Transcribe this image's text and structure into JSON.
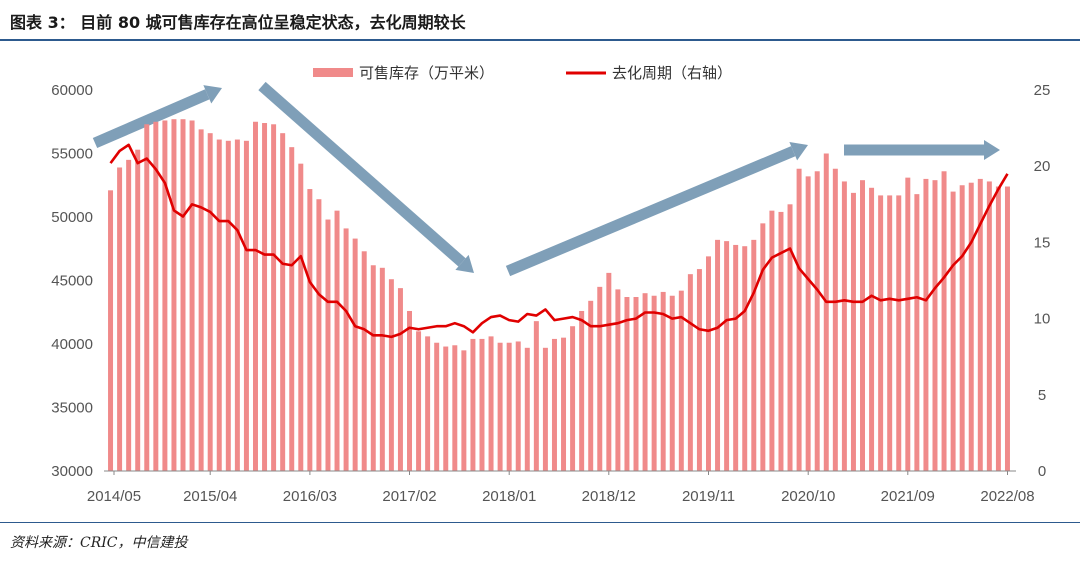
{
  "header": {
    "title": "图表 3：   目前 80 城可售库存在高位呈稳定状态，去化周期较长"
  },
  "footer": {
    "source": "资料来源：CRIC，中信建投"
  },
  "colors": {
    "bar": "#f08a8a",
    "line": "#e00000",
    "arrow": "#7f9fb8",
    "rule": "#2d5a8e"
  },
  "chart_data": {
    "type": "bar",
    "title": "",
    "legend": [
      "可售库存（万平米）",
      "去化周期（右轴）"
    ],
    "legend_position": "top-center",
    "x_start": "2014/05",
    "x_end": "2022/08",
    "x_tick_labels": [
      "2014/05",
      "2015/04",
      "2016/03",
      "2017/02",
      "2018/01",
      "2018/12",
      "2019/11",
      "2020/10",
      "2021/09",
      "2022/08"
    ],
    "y_left": {
      "min": 30000,
      "max": 60000,
      "ticks": [
        30000,
        35000,
        40000,
        45000,
        50000,
        55000,
        60000
      ]
    },
    "y_right": {
      "min": 0,
      "max": 25,
      "ticks": [
        0,
        5,
        10,
        15,
        20,
        25
      ]
    },
    "grid": false,
    "series": [
      {
        "name": "可售库存（万平米）",
        "axis": "left",
        "type": "bar",
        "values": [
          52100,
          53900,
          54500,
          55300,
          57300,
          57500,
          57600,
          57700,
          57700,
          57600,
          56900,
          56600,
          56100,
          56000,
          56100,
          56000,
          57500,
          57400,
          57300,
          56600,
          55500,
          54200,
          52200,
          51400,
          49800,
          50500,
          49100,
          48300,
          47300,
          46200,
          46000,
          45100,
          44400,
          42600,
          41000,
          40600,
          40100,
          39800,
          39900,
          39500,
          40400,
          40400,
          40600,
          40100,
          40100,
          40200,
          39700,
          41800,
          39700,
          40400,
          40500,
          41400,
          42600,
          43400,
          44500,
          45600,
          44300,
          43700,
          43700,
          44000,
          43800,
          44100,
          43800,
          44200,
          45500,
          45900,
          46900,
          48200,
          48100,
          47800,
          47700,
          48200,
          49500,
          50500,
          50400,
          51000,
          53800,
          53200,
          53600,
          55000,
          53800,
          52800,
          51900,
          52900,
          52300,
          51700,
          51700,
          51700,
          53100,
          51800,
          53000,
          52900,
          53600,
          52000,
          52500,
          52700,
          53000,
          52800,
          52400,
          52400
        ]
      },
      {
        "name": "去化周期（右轴）",
        "axis": "right",
        "type": "line",
        "values": [
          20.2,
          21.0,
          21.4,
          20.2,
          20.5,
          19.8,
          18.9,
          17.1,
          16.7,
          17.5,
          17.3,
          17.0,
          16.4,
          16.4,
          15.8,
          14.5,
          14.5,
          14.2,
          14.2,
          13.6,
          13.5,
          14.1,
          12.4,
          11.6,
          11.1,
          11.1,
          10.5,
          9.5,
          9.3,
          8.9,
          8.9,
          8.8,
          9.0,
          9.4,
          9.3,
          9.4,
          9.5,
          9.5,
          9.7,
          9.5,
          9.1,
          9.7,
          10.1,
          10.2,
          9.9,
          9.8,
          10.3,
          10.2,
          10.6,
          9.9,
          10.0,
          10.1,
          9.9,
          9.5,
          9.5,
          9.6,
          9.7,
          9.9,
          10.0,
          10.4,
          10.4,
          10.3,
          10.0,
          10.1,
          9.7,
          9.3,
          9.2,
          9.4,
          9.9,
          10.0,
          10.5,
          11.7,
          13.2,
          14.0,
          14.3,
          14.6,
          13.3,
          12.6,
          11.9,
          11.1,
          11.1,
          11.2,
          11.1,
          11.1,
          11.5,
          11.2,
          11.3,
          11.2,
          11.3,
          11.4,
          11.2,
          12.0,
          12.7,
          13.5,
          14.1,
          15.0,
          16.2,
          17.4,
          18.5,
          19.5
        ]
      }
    ]
  }
}
